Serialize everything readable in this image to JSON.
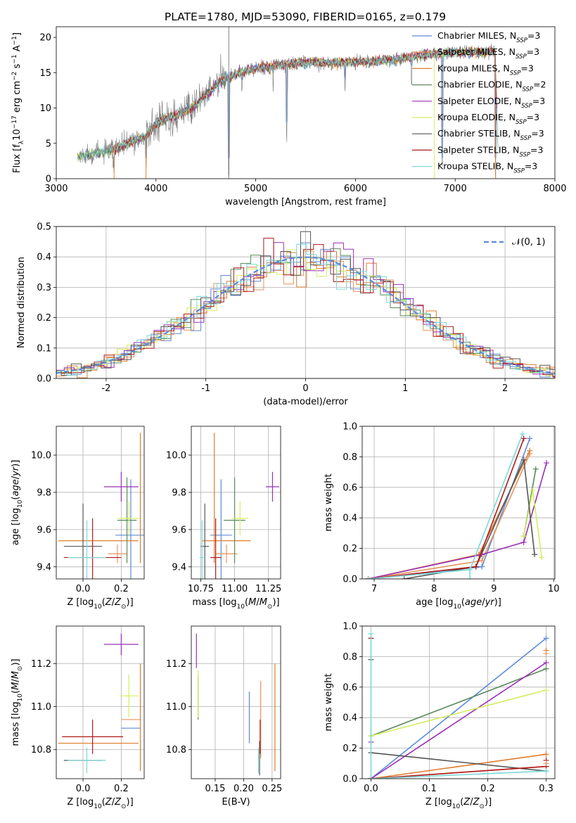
{
  "figure_title": "PLATE=1780, MJD=53090, FIBERID=0165, z=0.179",
  "colors": {
    "Chabrier MILES": "#5b8bd8",
    "Salpeter MILES": "#e8935b",
    "Kroupa MILES": "#e07b2a",
    "Chabrier ELODIE": "#5a8a5a",
    "Salpeter ELODIE": "#9b30b8",
    "Kroupa ELODIE": "#d4ee60",
    "Chabrier STELIB": "#555555",
    "Salpeter STELIB": "#b01a1a",
    "Kroupa STELIB": "#7dd8d8"
  },
  "chart_data": [
    {
      "id": "spectrum",
      "type": "line",
      "xlabel": "wavelength [Angstrom, rest frame]",
      "ylabel": "Flux [f_λ10^-17 erg cm^-2 s^-1 A^-1]",
      "xlim": [
        3000,
        8000
      ],
      "ylim": [
        0,
        21.5
      ],
      "xticks": [
        3000,
        4000,
        5000,
        6000,
        7000,
        8000
      ],
      "yticks": [
        0,
        5,
        10,
        15,
        20
      ],
      "legend_position": "upper-right",
      "legend": [
        {
          "label": "Chabrier MILES, N",
          "sub": "SSP",
          "suffix": "=3"
        },
        {
          "label": "Salpeter MILES, N",
          "sub": "SSP",
          "suffix": "=3"
        },
        {
          "label": "Kroupa MILES, N",
          "sub": "SSP",
          "suffix": "=3"
        },
        {
          "label": "Chabrier ELODIE, N",
          "sub": "SSP",
          "suffix": "=2"
        },
        {
          "label": "Salpeter ELODIE, N",
          "sub": "SSP",
          "suffix": "=3"
        },
        {
          "label": "Kroupa ELODIE, N",
          "sub": "SSP",
          "suffix": "=3"
        },
        {
          "label": "Chabrier STELIB, N",
          "sub": "SSP",
          "suffix": "=3"
        },
        {
          "label": "Salpeter STELIB, N",
          "sub": "SSP",
          "suffix": "=3"
        },
        {
          "label": "Kroupa STELIB, N",
          "sub": "SSP",
          "suffix": "=3"
        }
      ],
      "continuum": [
        [
          3210,
          0
        ],
        [
          3215,
          3.0
        ],
        [
          3300,
          3.4
        ],
        [
          3500,
          3.8
        ],
        [
          3600,
          4.2
        ],
        [
          3700,
          4.8
        ],
        [
          3800,
          5.5
        ],
        [
          3900,
          6.0
        ],
        [
          3950,
          7.0
        ],
        [
          4000,
          7.8
        ],
        [
          4100,
          8.5
        ],
        [
          4200,
          9.0
        ],
        [
          4300,
          9.6
        ],
        [
          4400,
          10.4
        ],
        [
          4500,
          11.8
        ],
        [
          4600,
          13.2
        ],
        [
          4700,
          14.2
        ],
        [
          4800,
          14.8
        ],
        [
          5000,
          15.6
        ],
        [
          5200,
          16.0
        ],
        [
          5400,
          16.3
        ],
        [
          5600,
          16.5
        ],
        [
          5800,
          16.4
        ],
        [
          6000,
          16.5
        ],
        [
          6200,
          16.6
        ],
        [
          6400,
          16.8
        ],
        [
          6600,
          17.3
        ],
        [
          6800,
          17.7
        ],
        [
          7000,
          17.8
        ],
        [
          7200,
          17.9
        ],
        [
          7400,
          18.0
        ],
        [
          7440,
          0
        ]
      ],
      "absorption_lines": [
        [
          3570,
          0
        ],
        [
          3580,
          0
        ],
        [
          3900,
          0
        ],
        [
          3935,
          7
        ],
        [
          3970,
          6
        ],
        [
          4102,
          8
        ],
        [
          4340,
          8.5
        ],
        [
          4730,
          0
        ],
        [
          4862,
          11
        ],
        [
          5175,
          12
        ],
        [
          5310,
          5
        ],
        [
          5895,
          11
        ],
        [
          6563,
          13
        ],
        [
          6870,
          0
        ],
        [
          7405,
          0
        ]
      ]
    },
    {
      "id": "residuals",
      "type": "line",
      "xlabel": "(data-model)/error",
      "ylabel": "Normed distribution",
      "xlim": [
        -2.5,
        2.5
      ],
      "ylim": [
        0,
        0.5
      ],
      "xticks": [
        -2,
        -1,
        0,
        1,
        2
      ],
      "yticks": [
        0.0,
        0.1,
        0.2,
        0.3,
        0.4,
        0.5
      ],
      "legend_position": "upper-right",
      "legend_label": "𝒩(0, 1)",
      "bin_width": 0.1
    },
    {
      "id": "age_vs_Z",
      "type": "scatter",
      "xlabel": "Z [log10(Z/Z⊙)]",
      "ylabel": "age [log10(age/yr)]",
      "xlim": [
        -0.14,
        0.32
      ],
      "ylim": [
        9.335,
        10.155
      ],
      "xticks": [
        0.0,
        0.2
      ],
      "yticks": [
        9.4,
        9.6,
        9.8,
        10.0
      ],
      "points": [
        {
          "model": "Chabrier MILES",
          "x": 0.25,
          "xerr": 0.08,
          "y": 9.57,
          "yerr": 0.3
        },
        {
          "model": "Salpeter MILES",
          "x": 0.18,
          "xerr": 0.05,
          "y": 9.47,
          "yerr": 0.05
        },
        {
          "model": "Kroupa MILES",
          "x": 0.3,
          "xerr": 0.0,
          "y": 9.77,
          "yerr": 0.35
        },
        {
          "model": "Kroupa MILES",
          "x": 0.08,
          "xerr": 0.21,
          "y": 9.54,
          "yerr": 0.0
        },
        {
          "model": "Chabrier ELODIE",
          "x": 0.23,
          "xerr": 0.05,
          "y": 9.65,
          "yerr": 0.23
        },
        {
          "model": "Salpeter ELODIE",
          "x": 0.2,
          "xerr": 0.09,
          "y": 9.83,
          "yerr": 0.08
        },
        {
          "model": "Kroupa ELODIE",
          "x": 0.24,
          "xerr": 0.06,
          "y": 9.66,
          "yerr": 0.09
        },
        {
          "model": "Chabrier STELIB",
          "x": 0.0,
          "xerr": 0.1,
          "y": 9.51,
          "yerr": 0.23
        },
        {
          "model": "Salpeter STELIB",
          "x": 0.05,
          "xerr": 0.15,
          "y": 9.45,
          "yerr": 0.21
        },
        {
          "model": "Kroupa STELIB",
          "x": 0.02,
          "xerr": 0.1,
          "y": 9.45,
          "yerr": 0.2
        }
      ]
    },
    {
      "id": "age_vs_mass",
      "type": "scatter",
      "xlabel": "mass [log10(M/M⊙)]",
      "ylabel": "",
      "xlim": [
        10.68,
        11.34
      ],
      "ylim": [
        9.335,
        10.155
      ],
      "xticks": [
        10.75,
        11.0,
        11.25
      ],
      "yticks": [
        9.4,
        9.6,
        9.8,
        10.0
      ],
      "points": [
        {
          "model": "Chabrier MILES",
          "x": 10.9,
          "xerr": 0.08,
          "y": 9.57,
          "yerr": 0.3
        },
        {
          "model": "Salpeter MILES",
          "x": 10.94,
          "xerr": 0.08,
          "y": 9.47,
          "yerr": 0.05
        },
        {
          "model": "Kroupa MILES",
          "x": 10.85,
          "xerr": 0.0,
          "y": 9.77,
          "yerr": 0.35
        },
        {
          "model": "Kroupa MILES",
          "x": 10.94,
          "xerr": 0.18,
          "y": 9.54,
          "yerr": 0.0
        },
        {
          "model": "Chabrier ELODIE",
          "x": 11.0,
          "xerr": 0.08,
          "y": 9.65,
          "yerr": 0.23
        },
        {
          "model": "Salpeter ELODIE",
          "x": 11.28,
          "xerr": 0.05,
          "y": 9.83,
          "yerr": 0.08
        },
        {
          "model": "Kroupa ELODIE",
          "x": 11.04,
          "xerr": 0.06,
          "y": 9.66,
          "yerr": 0.09
        },
        {
          "model": "Chabrier STELIB",
          "x": 10.78,
          "xerr": 0.03,
          "y": 9.51,
          "yerr": 0.23
        },
        {
          "model": "Salpeter STELIB",
          "x": 10.86,
          "xerr": 0.04,
          "y": 9.45,
          "yerr": 0.21
        },
        {
          "model": "Kroupa STELIB",
          "x": 10.76,
          "xerr": 0.02,
          "y": 9.45,
          "yerr": 0.2
        }
      ]
    },
    {
      "id": "massweight_vs_age",
      "type": "line",
      "xlabel": "age [log10(age/yr)]",
      "ylabel": "mass weight",
      "xlim": [
        6.8,
        10.02
      ],
      "ylim": [
        0,
        1.0
      ],
      "xticks": [
        7,
        8,
        9,
        10
      ],
      "yticks": [
        0.0,
        0.2,
        0.4,
        0.6,
        0.8,
        1.0
      ],
      "series": [
        {
          "model": "Chabrier MILES",
          "points": [
            [
              6.9,
              0.0
            ],
            [
              8.8,
              0.08
            ],
            [
              9.6,
              0.92
            ]
          ]
        },
        {
          "model": "Salpeter MILES",
          "points": [
            [
              6.9,
              0.0
            ],
            [
              8.8,
              0.12
            ],
            [
              9.6,
              0.82
            ]
          ]
        },
        {
          "model": "Kroupa MILES",
          "points": [
            [
              6.9,
              0.0
            ],
            [
              8.75,
              0.16
            ],
            [
              9.6,
              0.84
            ]
          ]
        },
        {
          "model": "Chabrier ELODIE",
          "points": [
            [
              9.5,
              0.28
            ],
            [
              9.7,
              0.72
            ]
          ]
        },
        {
          "model": "Salpeter ELODIE",
          "points": [
            [
              6.9,
              0.0
            ],
            [
              8.8,
              0.16
            ],
            [
              9.5,
              0.24
            ],
            [
              9.88,
              0.76
            ]
          ]
        },
        {
          "model": "Kroupa ELODIE",
          "points": [
            [
              9.5,
              0.28
            ],
            [
              9.65,
              0.58
            ],
            [
              9.8,
              0.14
            ]
          ]
        },
        {
          "model": "Chabrier STELIB",
          "points": [
            [
              7.5,
              0.0
            ],
            [
              8.7,
              0.08
            ],
            [
              9.5,
              0.78
            ],
            [
              9.68,
              0.16
            ]
          ]
        },
        {
          "model": "Salpeter STELIB",
          "points": [
            [
              6.9,
              0.0
            ],
            [
              8.7,
              0.08
            ],
            [
              9.5,
              0.92
            ]
          ]
        },
        {
          "model": "Kroupa STELIB",
          "points": [
            [
              6.9,
              0.0
            ],
            [
              8.6,
              0.06
            ],
            [
              9.48,
              0.95
            ]
          ]
        }
      ]
    },
    {
      "id": "mass_vs_Z",
      "type": "scatter",
      "xlabel": "Z [log10(Z/Z⊙)]",
      "ylabel": "mass [log10(M/M⊙)]",
      "xlim": [
        -0.14,
        0.32
      ],
      "ylim": [
        10.665,
        11.375
      ],
      "xticks": [
        0.0,
        0.2
      ],
      "yticks": [
        10.8,
        11.0,
        11.2
      ],
      "points": [
        {
          "model": "Chabrier MILES",
          "x": 0.25,
          "xerr": 0.05,
          "y": 10.9,
          "yerr": 0.0
        },
        {
          "model": "Salpeter MILES",
          "x": 0.25,
          "xerr": 0.05,
          "y": 10.94,
          "yerr": 0.0
        },
        {
          "model": "Kroupa MILES",
          "x": 0.3,
          "xerr": 0.0,
          "y": 10.95,
          "yerr": 0.25
        },
        {
          "model": "Kroupa MILES",
          "x": 0.08,
          "xerr": 0.21,
          "y": 10.83,
          "yerr": 0.0
        },
        {
          "model": "Chabrier ELODIE",
          "x": 0.23,
          "xerr": 0.0,
          "y": 11.04,
          "yerr": 0.0
        },
        {
          "model": "Salpeter ELODIE",
          "x": 0.2,
          "xerr": 0.09,
          "y": 11.29,
          "yerr": 0.05
        },
        {
          "model": "Kroupa ELODIE",
          "x": 0.24,
          "xerr": 0.05,
          "y": 11.05,
          "yerr": 0.1
        },
        {
          "model": "Chabrier STELIB",
          "x": 0.0,
          "xerr": 0.1,
          "y": 10.75,
          "yerr": 0.0
        },
        {
          "model": "Salpeter STELIB",
          "x": 0.05,
          "xerr": 0.16,
          "y": 10.86,
          "yerr": 0.08
        },
        {
          "model": "Kroupa STELIB",
          "x": 0.02,
          "xerr": 0.1,
          "y": 10.75,
          "yerr": 0.06
        }
      ]
    },
    {
      "id": "mass_vs_ebv",
      "type": "scatter",
      "xlabel": "E(B-V)",
      "ylabel": "",
      "xlim": [
        0.108,
        0.265
      ],
      "ylim": [
        10.665,
        11.375
      ],
      "xticks": [
        0.15,
        0.2,
        0.25
      ],
      "yticks": [
        10.8,
        11.0,
        11.2
      ],
      "points": [
        {
          "model": "Chabrier MILES",
          "x": 0.21,
          "y": 10.95,
          "yerr": 0.12
        },
        {
          "model": "Salpeter MILES",
          "x": 0.23,
          "y": 10.94,
          "yerr": 0.18
        },
        {
          "model": "Kroupa MILES",
          "x": 0.255,
          "y": 10.95,
          "yerr": 0.25
        },
        {
          "model": "Chabrier ELODIE",
          "x": 0.12,
          "y": 11.04,
          "yerr": 0.1
        },
        {
          "model": "Salpeter ELODIE",
          "x": 0.117,
          "y": 11.26,
          "yerr": 0.08
        },
        {
          "model": "Kroupa ELODIE",
          "x": 0.12,
          "y": 11.06,
          "yerr": 0.11
        },
        {
          "model": "Chabrier STELIB",
          "x": 0.228,
          "y": 10.76,
          "yerr": 0.08
        },
        {
          "model": "Salpeter STELIB",
          "x": 0.229,
          "y": 10.86,
          "yerr": 0.08
        },
        {
          "model": "Kroupa STELIB",
          "x": 0.226,
          "y": 10.75,
          "yerr": 0.06
        }
      ]
    },
    {
      "id": "massweight_vs_Z",
      "type": "line",
      "xlabel": "Z [log10(Z/Z⊙)]",
      "ylabel": "mass weight",
      "xlim": [
        -0.015,
        0.315
      ],
      "ylim": [
        0,
        1.0
      ],
      "xticks": [
        0.0,
        0.1,
        0.2,
        0.3
      ],
      "yticks": [
        0.0,
        0.2,
        0.4,
        0.6,
        0.8,
        1.0
      ],
      "series": [
        {
          "model": "Chabrier MILES",
          "points": [
            [
              0.0,
              0.0
            ],
            [
              0.3,
              0.92
            ]
          ]
        },
        {
          "model": "Salpeter MILES",
          "points": [
            [
              0.0,
              0.0
            ],
            [
              0.3,
              0.08
            ]
          ]
        },
        {
          "model": "Kroupa MILES",
          "points": [
            [
              0.0,
              0.0
            ],
            [
              0.3,
              0.16
            ]
          ]
        },
        {
          "model": "Chabrier ELODIE",
          "points": [
            [
              0.0,
              0.28
            ],
            [
              0.3,
              0.72
            ]
          ]
        },
        {
          "model": "Salpeter ELODIE",
          "points": [
            [
              0.0,
              0.0
            ],
            [
              0.3,
              0.76
            ]
          ]
        },
        {
          "model": "Kroupa ELODIE",
          "points": [
            [
              0.0,
              0.28
            ],
            [
              0.3,
              0.58
            ]
          ]
        },
        {
          "model": "Chabrier STELIB",
          "points": [
            [
              0.0,
              0.17
            ],
            [
              0.3,
              0.05
            ]
          ]
        },
        {
          "model": "Salpeter STELIB",
          "points": [
            [
              0.0,
              0.0
            ],
            [
              0.3,
              0.08
            ]
          ]
        },
        {
          "model": "Kroupa STELIB",
          "points": [
            [
              0.0,
              0.0
            ],
            [
              0.3,
              0.05
            ]
          ]
        }
      ],
      "end_markers": [
        {
          "model": "Kroupa STELIB",
          "x": 0.0,
          "y": 0.95
        },
        {
          "model": "Chabrier STELIB",
          "x": 0.0,
          "y": 0.78
        },
        {
          "model": "Salpeter STELIB",
          "x": 0.0,
          "y": 0.92
        },
        {
          "model": "Salpeter ELODIE",
          "x": 0.0,
          "y": 0.24
        },
        {
          "model": "Kroupa MILES",
          "x": 0.3,
          "y": 0.84
        },
        {
          "model": "Salpeter MILES",
          "x": 0.3,
          "y": 0.82
        },
        {
          "model": "Salpeter STELIB",
          "x": 0.3,
          "y": 0.12
        },
        {
          "model": "Salpeter MILES",
          "x": 0.3,
          "y": 0.1
        }
      ]
    }
  ]
}
